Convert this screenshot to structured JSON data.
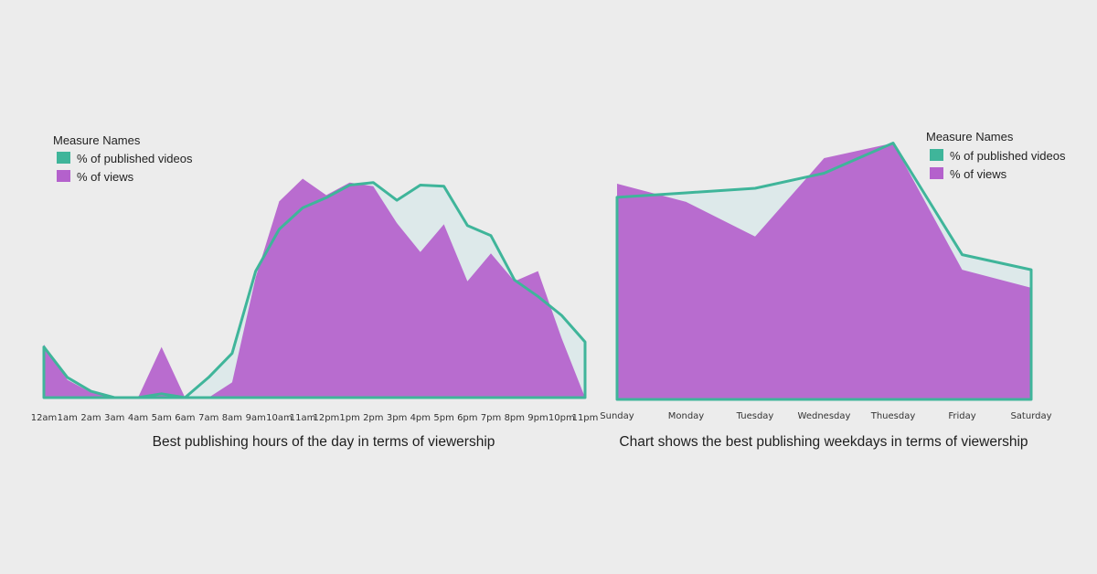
{
  "colors": {
    "background": "#ececec",
    "videos": "#3fb59a",
    "views": "#b461cc"
  },
  "chart_data": [
    {
      "type": "area",
      "title": "Best publishing hours of the day in terms of viewership",
      "legend": {
        "title": "Measure Names",
        "placement": "top-left",
        "items": [
          "% of published videos",
          "% of views"
        ]
      },
      "categories": [
        "12am",
        "1am",
        "2am",
        "3am",
        "4am",
        "5am",
        "6am",
        "7am",
        "8am",
        "9am",
        "10am",
        "11am",
        "12pm",
        "1pm",
        "2pm",
        "3pm",
        "4pm",
        "5pm",
        "6pm",
        "7pm",
        "8pm",
        "9pm",
        "10pm",
        "11pm"
      ],
      "series": [
        {
          "name": "% of published videos",
          "render": "line",
          "values": [
            0.4,
            0.16,
            0.05,
            0.0,
            0.0,
            0.03,
            0.0,
            0.16,
            0.35,
            1.0,
            1.33,
            1.5,
            1.58,
            1.68,
            1.7,
            1.56,
            1.68,
            1.67,
            1.36,
            1.28,
            0.93,
            0.8,
            0.65,
            0.44
          ]
        },
        {
          "name": "% of views",
          "render": "area",
          "values": [
            0.42,
            0.14,
            0.04,
            0.0,
            0.0,
            0.4,
            0.0,
            0.0,
            0.12,
            0.95,
            1.55,
            1.73,
            1.6,
            1.7,
            1.67,
            1.38,
            1.15,
            1.37,
            0.92,
            1.14,
            0.92,
            1.0,
            0.47,
            0.0
          ]
        }
      ],
      "ylim": [
        0,
        1.9
      ]
    },
    {
      "type": "area",
      "title": "Chart shows the best publishing weekdays in terms of viewership",
      "legend": {
        "title": "Measure Names",
        "placement": "top-right",
        "items": [
          "% of published videos",
          "% of views"
        ]
      },
      "categories": [
        "Sunday",
        "Monday",
        "Tuesday",
        "Wednesday",
        "Thuesday",
        "Friday",
        "Saturday"
      ],
      "series": [
        {
          "name": "% of published videos",
          "render": "line",
          "values": [
            13.4,
            13.7,
            14.0,
            15.0,
            17.0,
            9.6,
            8.6
          ]
        },
        {
          "name": "% of views",
          "render": "area",
          "values": [
            14.3,
            13.1,
            10.8,
            16.0,
            17.0,
            8.6,
            7.4
          ]
        }
      ],
      "ylim": [
        0,
        18
      ]
    }
  ]
}
